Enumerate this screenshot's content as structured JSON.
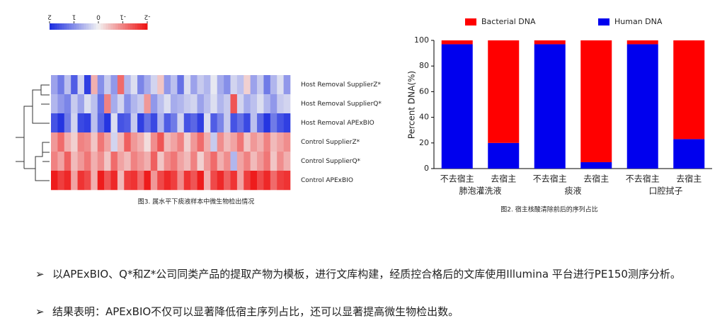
{
  "chart_data": [
    {
      "type": "heatmap",
      "caption": "图3. 属水平下痰液样本中微生物检出情况",
      "rows": [
        "Host Removal SupplierZ*",
        "Host Removal SupplierQ*",
        "Host Removal APExBIO",
        "Control SupplierZ*",
        "Control SupplierQ*",
        "Control APExBIO"
      ],
      "clim": [
        -2,
        2
      ],
      "colorbar_ticks": [
        2,
        1,
        0,
        -1,
        -2
      ],
      "colors": [
        "#ee1111",
        "#f2f2f2",
        "#1a2be0"
      ],
      "values": [
        [
          0.8,
          1.2,
          0.5,
          1.5,
          0.3,
          1.8,
          -0.6,
          1.0,
          0.4,
          0.9,
          -1.2,
          0.6,
          0.2,
          1.1,
          0.7,
          0.3,
          -0.4,
          0.9,
          0.5,
          1.3,
          0.2,
          0.8,
          0.4,
          0.6,
          0.1,
          0.7,
          1.0,
          0.3,
          0.5,
          -0.3,
          0.8,
          0.4,
          1.2,
          0.6,
          0.2,
          0.9
        ],
        [
          0.6,
          0.9,
          1.1,
          0.4,
          0.8,
          0.2,
          0.5,
          1.3,
          -1.0,
          0.7,
          0.3,
          1.0,
          0.6,
          0.4,
          -0.8,
          0.9,
          0.5,
          0.2,
          0.7,
          0.6,
          0.4,
          0.3,
          0.8,
          0.5,
          0.2,
          0.6,
          0.4,
          -1.4,
          0.3,
          0.7,
          0.5,
          0.2,
          0.6,
          0.9,
          0.4,
          0.3
        ],
        [
          1.6,
          1.9,
          1.2,
          0.3,
          1.7,
          1.8,
          0.5,
          1.4,
          1.9,
          0.2,
          1.6,
          1.5,
          0.4,
          1.8,
          1.3,
          1.7,
          0.6,
          1.5,
          1.2,
          0.3,
          1.6,
          1.4,
          1.8,
          0.2,
          1.5,
          1.1,
          0.4,
          1.6,
          1.3,
          1.7,
          0.5,
          1.4,
          1.9,
          1.2,
          1.6,
          1.8
        ],
        [
          -0.8,
          -1.2,
          -0.6,
          -0.3,
          -1.0,
          -0.9,
          -0.4,
          -1.1,
          -0.7,
          0.3,
          -0.5,
          -1.3,
          -0.8,
          -0.6,
          -0.2,
          -0.9,
          -1.4,
          -0.5,
          -0.7,
          -1.0,
          -0.3,
          -0.8,
          -1.2,
          -0.6,
          0.4,
          -0.9,
          -0.5,
          -0.7,
          -1.1,
          -0.4,
          -0.8,
          -0.6,
          -1.0,
          -0.5,
          -0.7,
          -0.9
        ],
        [
          -1.0,
          -0.7,
          -1.3,
          -0.5,
          -0.8,
          -1.1,
          -0.6,
          -0.9,
          -0.4,
          -1.2,
          -0.7,
          -0.5,
          -1.0,
          -0.8,
          -0.6,
          -1.3,
          -0.4,
          -0.9,
          -1.1,
          -0.7,
          -0.5,
          -1.0,
          -0.3,
          -0.8,
          -1.2,
          -0.6,
          -0.9,
          0.6,
          -0.7,
          -1.0,
          -0.5,
          -0.8,
          -1.1,
          -0.4,
          -0.9,
          -0.6
        ],
        [
          -1.9,
          -1.6,
          -1.8,
          -0.7,
          -1.7,
          -1.5,
          -0.6,
          -1.9,
          -1.4,
          -1.8,
          -0.5,
          -1.6,
          -1.7,
          -1.2,
          -1.9,
          -0.8,
          -1.5,
          -1.8,
          -1.6,
          -0.9,
          -1.7,
          -1.4,
          -1.9,
          -0.6,
          -1.5,
          -1.8,
          -1.3,
          -1.7,
          -0.7,
          -1.6,
          -1.9,
          -1.5,
          -1.8,
          -1.2,
          -1.6,
          -1.7
        ]
      ]
    },
    {
      "type": "stacked-bar",
      "caption": "图2. 宿主核酸清除前后的序列占比",
      "ylabel": "Percent DNA(%)",
      "categories": [
        "不去宿主",
        "去宿主",
        "不去宿主",
        "去宿主",
        "不去宿主",
        "去宿主"
      ],
      "groups": [
        "肺泡灌洗液",
        "痰液",
        "口腔拭子"
      ],
      "series": [
        {
          "name": "Bacterial DNA",
          "color": "#ff0000",
          "values": [
            3,
            80,
            3,
            95,
            3,
            77
          ]
        },
        {
          "name": "Human DNA",
          "color": "#0000ee",
          "values": [
            97,
            20,
            97,
            5,
            97,
            23
          ]
        }
      ],
      "ylim": [
        0,
        100
      ],
      "yticks": [
        0,
        20,
        40,
        60,
        80,
        100
      ]
    }
  ],
  "bullets": [
    "以APExBIO、Q*和Z*公司同类产品的提取产物为模板，进行文库构建，经质控合格后的文库使用Illumina 平台进行PE150测序分析。",
    "结果表明：APExBIO不仅可以显著降低宿主序列占比，还可以显著提高微生物检出数。"
  ]
}
